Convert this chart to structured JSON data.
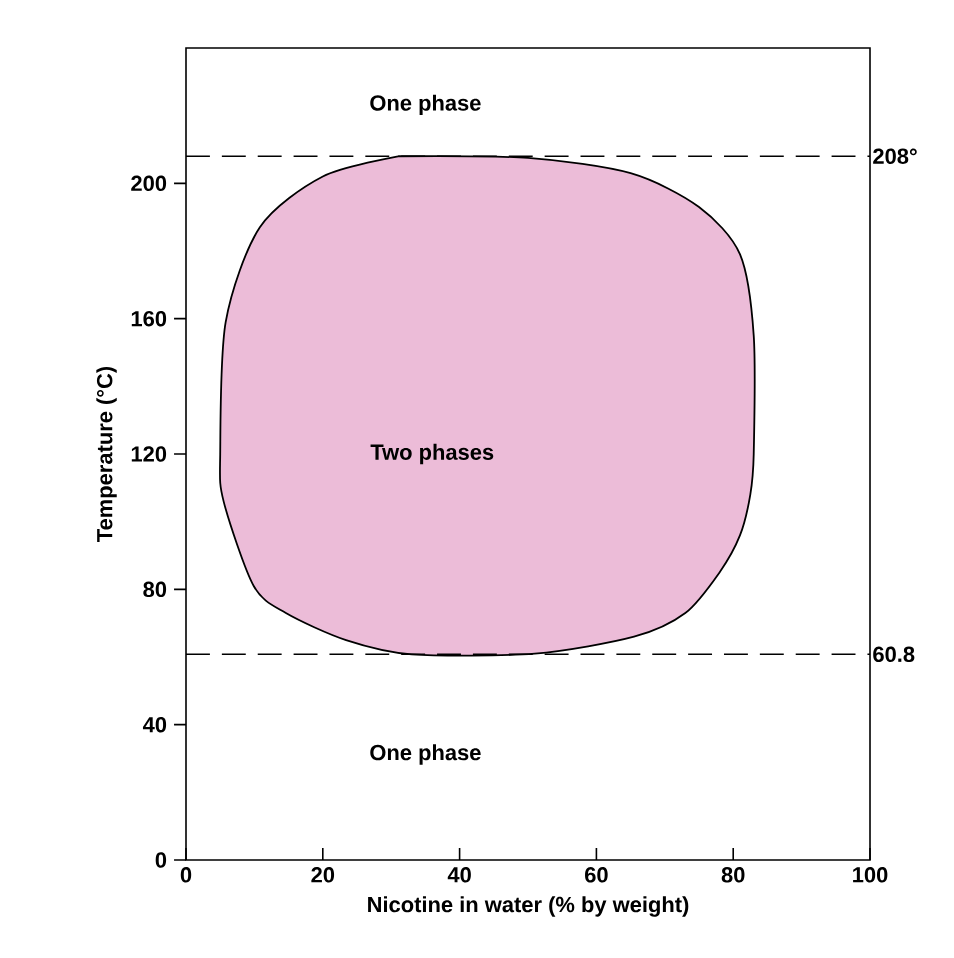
{
  "chart_data": {
    "type": "area",
    "xlabel": "Nicotine in water (% by weight)",
    "ylabel": "Temperature (°C)",
    "xlim": [
      0,
      100
    ],
    "ylim": [
      0,
      240
    ],
    "xticks": [
      0,
      20,
      40,
      60,
      80,
      100
    ],
    "yticks": [
      0,
      40,
      80,
      120,
      160,
      200
    ],
    "grid": false,
    "series": [
      {
        "color": "#ecbcd8",
        "x": [
          31,
          50,
          65,
          75,
          81,
          83,
          83,
          82.5,
          81,
          78,
          73,
          65.5,
          51,
          33,
          23.4,
          14.6,
          9.9,
          5.5,
          5,
          5.8,
          10.8,
          20,
          31
        ],
        "values": [
          208,
          207.5,
          203,
          193,
          179,
          155,
          120,
          108,
          96,
          85,
          73,
          66,
          61,
          60.8,
          65,
          73,
          81,
          106,
          120,
          159,
          187,
          202,
          208
        ]
      }
    ],
    "ref_lines": [
      {
        "axis": "y",
        "value": 208,
        "label": "208°",
        "line_style": "dashed"
      },
      {
        "axis": "y",
        "value": 60.8,
        "label": "60.8",
        "line_style": "dashed"
      }
    ],
    "annotations": [
      "One phase",
      "Two phases",
      "One phase"
    ]
  }
}
